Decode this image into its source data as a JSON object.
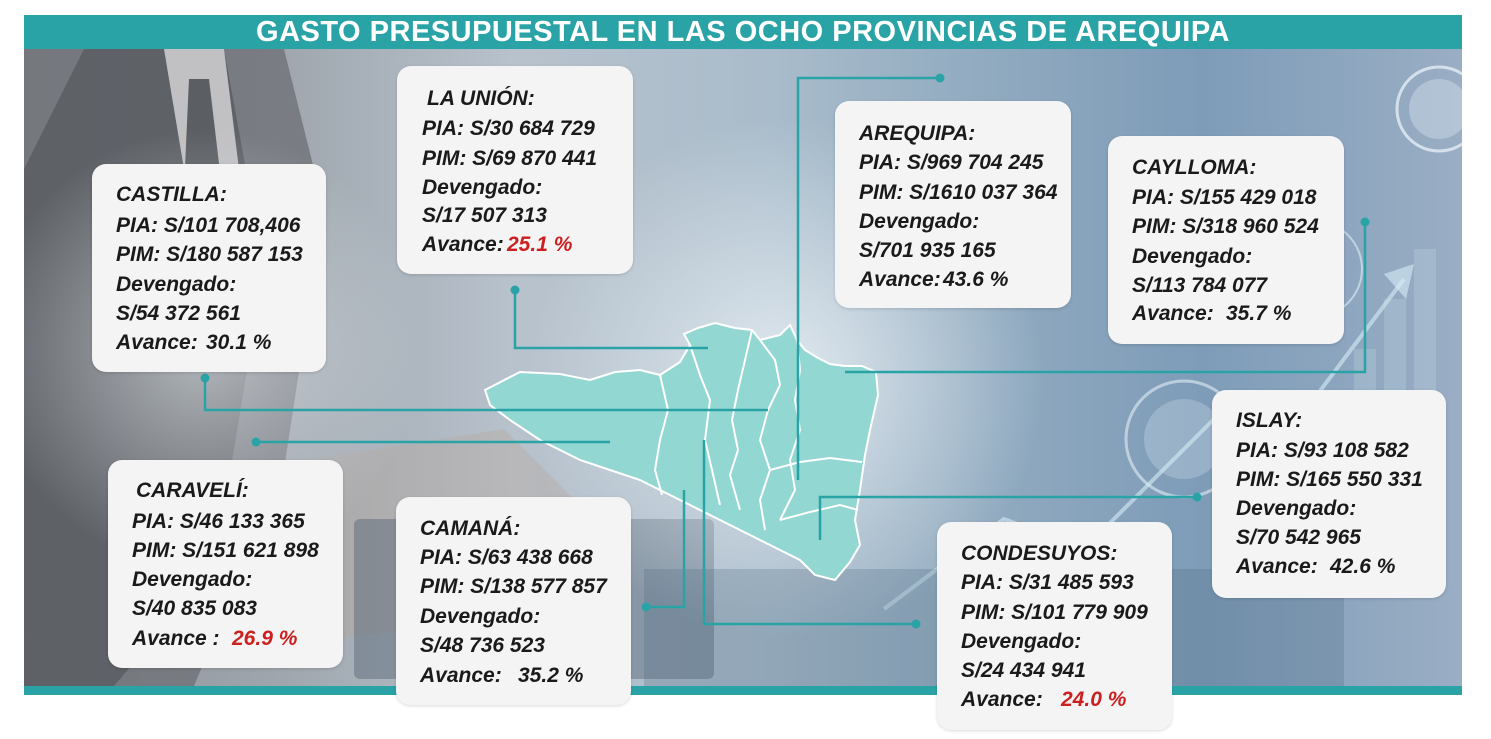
{
  "title": "GASTO PRESUPUESTAL EN LAS OCHO PROVINCIAS DE AREQUIPA",
  "colors": {
    "accent": "#2aa3a6",
    "card": "#f4f4f4",
    "highlight": "#cc1f1f",
    "map": "#8fd6d1"
  },
  "provinces": {
    "la_union": {
      "name": "LA UNIÓN:",
      "pia": "PIA: S/30 684 729",
      "pim": "PIM: S/69 870 441",
      "devengado_label": "Devengado:",
      "devengado": "S/17 507 313",
      "avance_label": "Avance:",
      "avance": "25.1 %"
    },
    "arequipa": {
      "name": "AREQUIPA:",
      "pia": "PIA: S/969 704 245",
      "pim": "PIM: S/1610 037 364",
      "devengado_label": "Devengado:",
      "devengado": "S/701 935 165",
      "avance_label": "Avance:",
      "avance": "43.6 %"
    },
    "castilla": {
      "name": "CASTILLA:",
      "pia": "PIA: S/101 708,406",
      "pim": "PIM: S/180 587 153",
      "devengado_label": "Devengado:",
      "devengado": "S/54 372 561",
      "avance_label": "Avance:",
      "avance": "30.1 %"
    },
    "caylloma": {
      "name": "CAYLLOMA:",
      "pia": "PIA: S/155 429 018",
      "pim": "PIM: S/318 960 524",
      "devengado_label": "Devengado:",
      "devengado": "S/113 784 077",
      "avance_label": "Avance:",
      "avance": "35.7 %"
    },
    "islay": {
      "name": "ISLAY:",
      "pia": "PIA: S/93 108 582",
      "pim": "PIM: S/165 550 331",
      "devengado_label": "Devengado:",
      "devengado": "S/70 542 965",
      "avance_label": "Avance:",
      "avance": "42.6 %"
    },
    "caraveli": {
      "name": "CARAVELÍ:",
      "pia": "PIA: S/46 133 365",
      "pim": "PIM: S/151 621 898",
      "devengado_label": "Devengado:",
      "devengado": "S/40 835 083",
      "avance_label": "Avance :",
      "avance": "26.9 %"
    },
    "camana": {
      "name": "CAMANÁ:",
      "pia": "PIA: S/63 438 668",
      "pim": "PIM: S/138 577 857",
      "devengado_label": "Devengado:",
      "devengado": "S/48 736 523",
      "avance_label": "Avance:",
      "avance": "35.2 %"
    },
    "condesuyos": {
      "name": "CONDESUYOS:",
      "pia": "PIA: S/31 485 593",
      "pim": "PIM: S/101 779 909",
      "devengado_label": "Devengado:",
      "devengado": "S/24 434 941",
      "avance_label": "Avance:",
      "avance": "24.0 %"
    }
  }
}
